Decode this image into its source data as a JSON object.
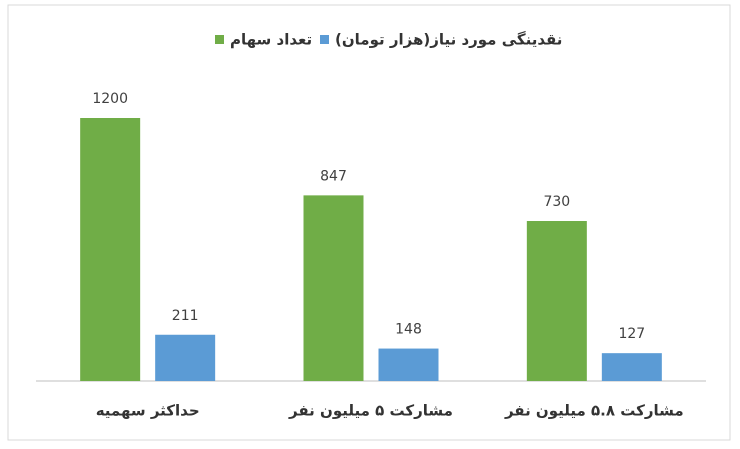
{
  "chart_data": {
    "type": "bar",
    "categories": [
      "حداکثر سهمیه",
      "مشارکت ۵ میلیون نفر",
      "مشارکت ۵.۸ میلیون نفر"
    ],
    "series": [
      {
        "name": "تعداد سهام",
        "color": "#70ad47",
        "values": [
          1200,
          847,
          730
        ]
      },
      {
        "name": "نقدینگی مورد نیاز(هزار تومان)",
        "color": "#5b9bd5",
        "values": [
          211,
          148,
          127
        ]
      }
    ],
    "legend": "top"
  }
}
